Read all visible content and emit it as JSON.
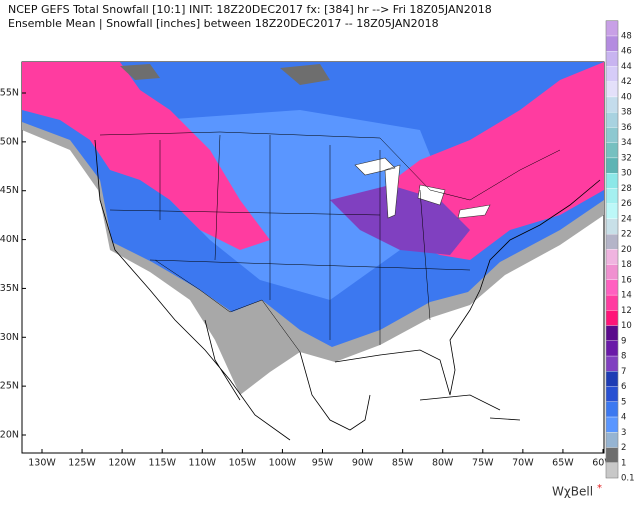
{
  "header": {
    "line1": "NCEP GEFS Total Snowfall [10:1] INIT: 18Z20DEC2017 fx: [384] hr --> Fri 18Z05JAN2018",
    "line2": "Ensemble Mean | Snowfall [inches] between 18Z20DEC2017 -- 18Z05JAN2018"
  },
  "map": {
    "lat_labels": [
      "55N",
      "50N",
      "45N",
      "40N",
      "35N",
      "30N",
      "25N",
      "20N"
    ],
    "lon_labels": [
      "130W",
      "125W",
      "120W",
      "115W",
      "110W",
      "105W",
      "100W",
      "95W",
      "90W",
      "85W",
      "80W",
      "75W",
      "70W",
      "65W",
      "60W"
    ]
  },
  "colorbar": {
    "labels": [
      "48",
      "46",
      "44",
      "42",
      "40",
      "38",
      "36",
      "34",
      "32",
      "30",
      "28",
      "26",
      "24",
      "22",
      "20",
      "18",
      "16",
      "14",
      "12",
      "10",
      "9",
      "8",
      "7",
      "6",
      "5",
      "4",
      "3",
      "2",
      "1",
      "0.1"
    ],
    "colors": [
      "#c8a0e6",
      "#b48ce0",
      "#c8b4f0",
      "#d6ccf8",
      "#e4e0fa",
      "#c4dcec",
      "#a8d2e0",
      "#8ec8d0",
      "#76c0c0",
      "#5eb4b4",
      "#8ce8e8",
      "#a4f0f0",
      "#bcf8f8",
      "#c8e0e8",
      "#b4b4c8",
      "#f0b4e0",
      "#f090d0",
      "#ff60c0",
      "#ff3ca0",
      "#ff1478",
      "#5a0a8c",
      "#6a1aa8",
      "#8040c0",
      "#1e3cb4",
      "#2850d2",
      "#3c78f0",
      "#5a96ff",
      "#96b4d2",
      "#6e6e6e",
      "#c8c8c8"
    ]
  },
  "logo": "WχBell"
}
